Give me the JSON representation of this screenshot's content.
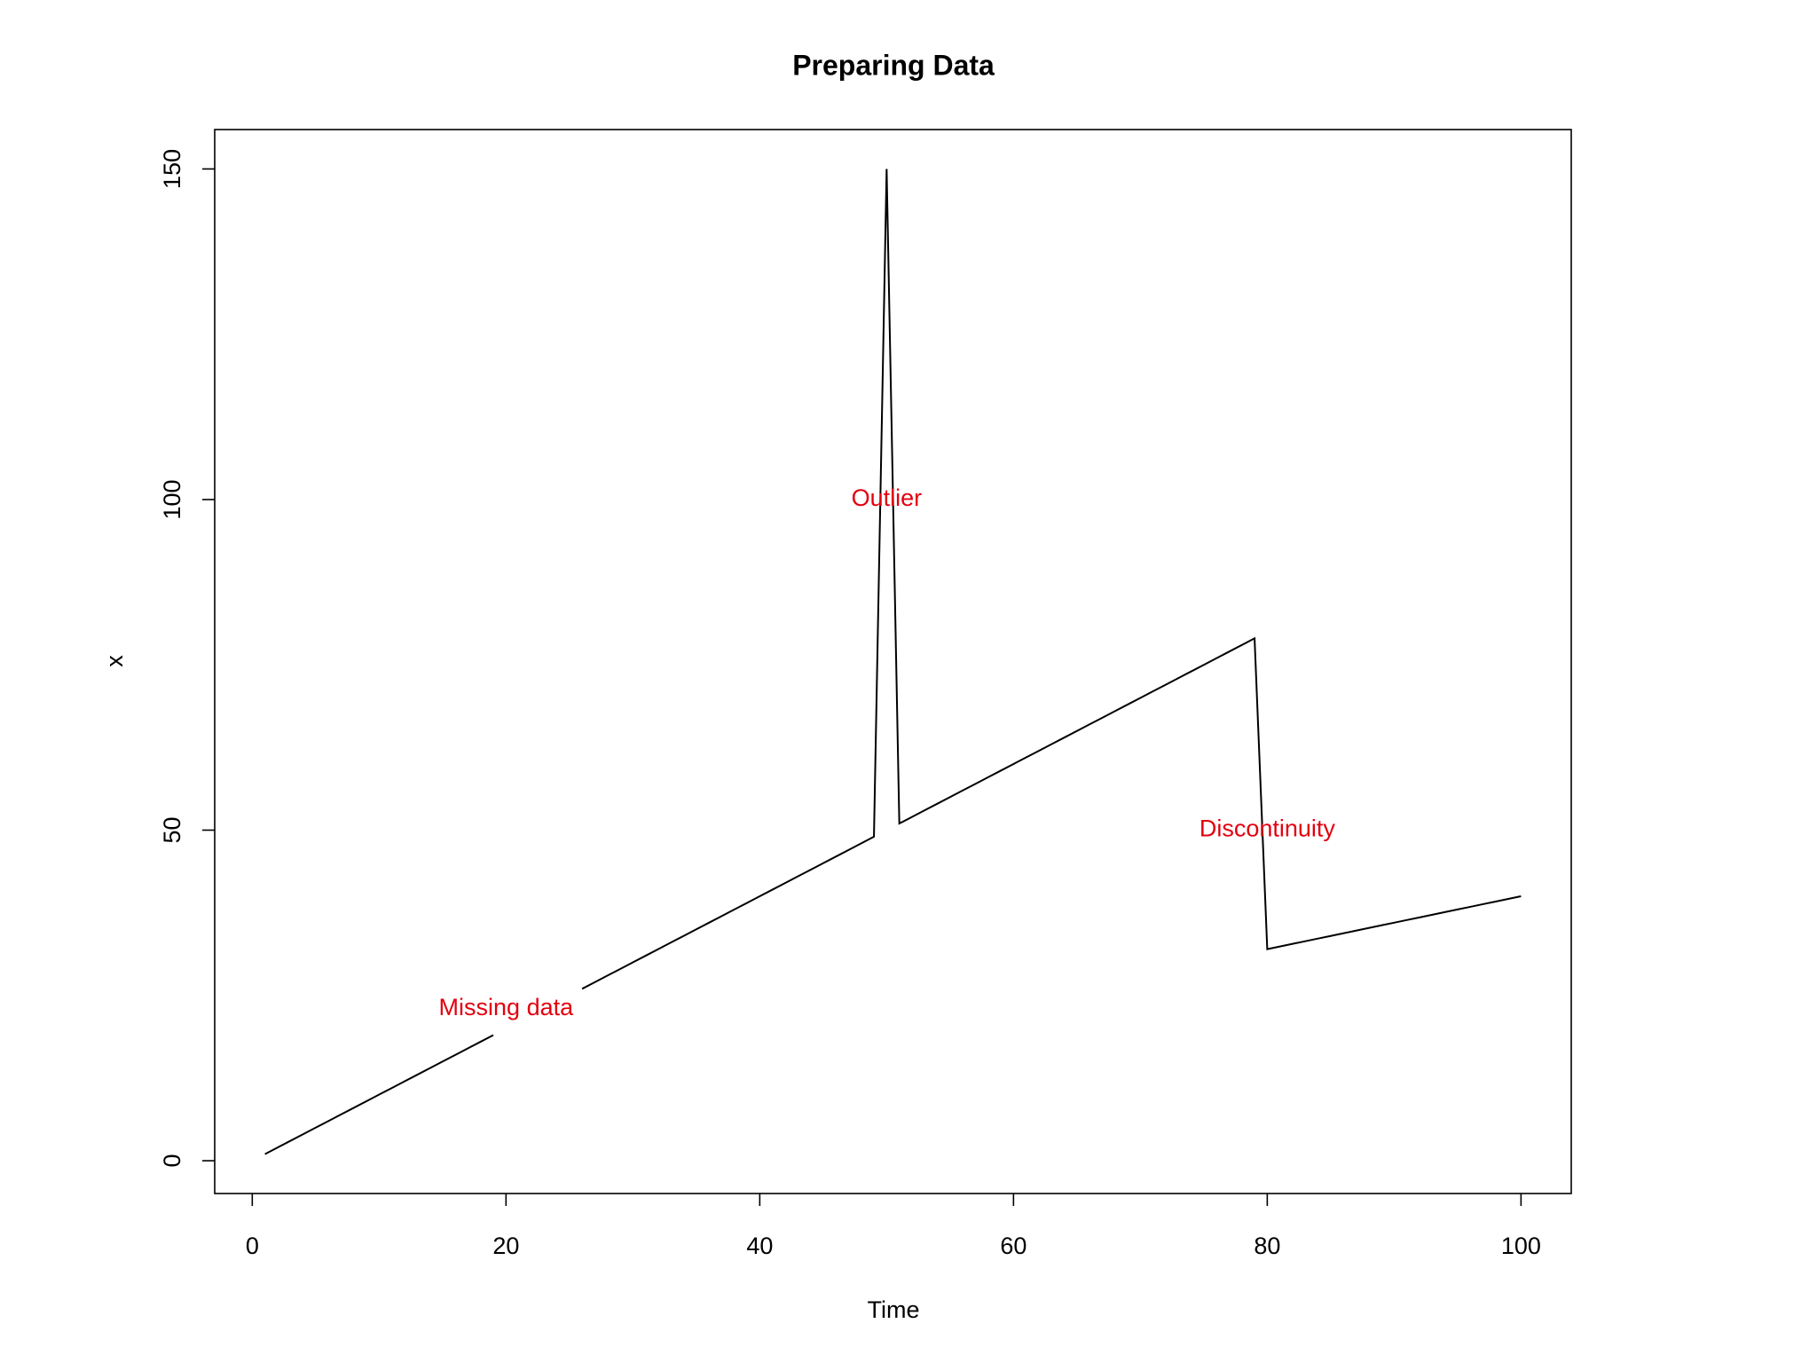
{
  "chart_data": {
    "type": "line",
    "title": "Preparing Data",
    "xlabel": "Time",
    "ylabel": "x",
    "x": [
      1,
      2,
      3,
      4,
      5,
      6,
      7,
      8,
      9,
      10,
      11,
      12,
      13,
      14,
      15,
      16,
      17,
      18,
      19,
      20,
      21,
      22,
      23,
      24,
      25,
      26,
      27,
      28,
      29,
      30,
      31,
      32,
      33,
      34,
      35,
      36,
      37,
      38,
      39,
      40,
      41,
      42,
      43,
      44,
      45,
      46,
      47,
      48,
      49,
      50,
      51,
      52,
      53,
      54,
      55,
      56,
      57,
      58,
      59,
      60,
      61,
      62,
      63,
      64,
      65,
      66,
      67,
      68,
      69,
      70,
      71,
      72,
      73,
      74,
      75,
      76,
      77,
      78,
      79,
      80,
      81,
      82,
      83,
      84,
      85,
      86,
      87,
      88,
      89,
      90,
      91,
      92,
      93,
      94,
      95,
      96,
      97,
      98,
      99,
      100
    ],
    "values": [
      1,
      2,
      3,
      4,
      5,
      6,
      7,
      8,
      9,
      10,
      11,
      12,
      13,
      14,
      15,
      16,
      17,
      18,
      19,
      null,
      null,
      null,
      null,
      null,
      null,
      26,
      27,
      28,
      29,
      30,
      31,
      32,
      33,
      34,
      35,
      36,
      37,
      38,
      39,
      40,
      41,
      42,
      43,
      44,
      45,
      46,
      47,
      48,
      49,
      150,
      51,
      52,
      53,
      54,
      55,
      56,
      57,
      58,
      59,
      60,
      61,
      62,
      63,
      64,
      65,
      66,
      67,
      68,
      69,
      70,
      71,
      72,
      73,
      74,
      75,
      76,
      77,
      78,
      79,
      32,
      32.4,
      32.8,
      33.2,
      33.6,
      34,
      34.4,
      34.8,
      35.2,
      35.6,
      36,
      36.4,
      36.8,
      37.2,
      37.6,
      38,
      38.4,
      38.8,
      39.2,
      39.6,
      40
    ],
    "color": "#000000",
    "xlim": [
      -2.96,
      103.96
    ],
    "xticks": [
      0,
      20,
      40,
      60,
      80,
      100
    ],
    "ylim": [
      -4.96,
      155.96
    ],
    "yticks": [
      0,
      50,
      100,
      150
    ],
    "grid": false,
    "annotations": [
      {
        "text": "Missing data",
        "x": 20,
        "y": 23
      },
      {
        "text": "Outlier",
        "x": 50,
        "y": 100
      },
      {
        "text": "Discontinuity",
        "x": 80,
        "y": 50
      }
    ],
    "annotation_color": "#e3000f"
  }
}
